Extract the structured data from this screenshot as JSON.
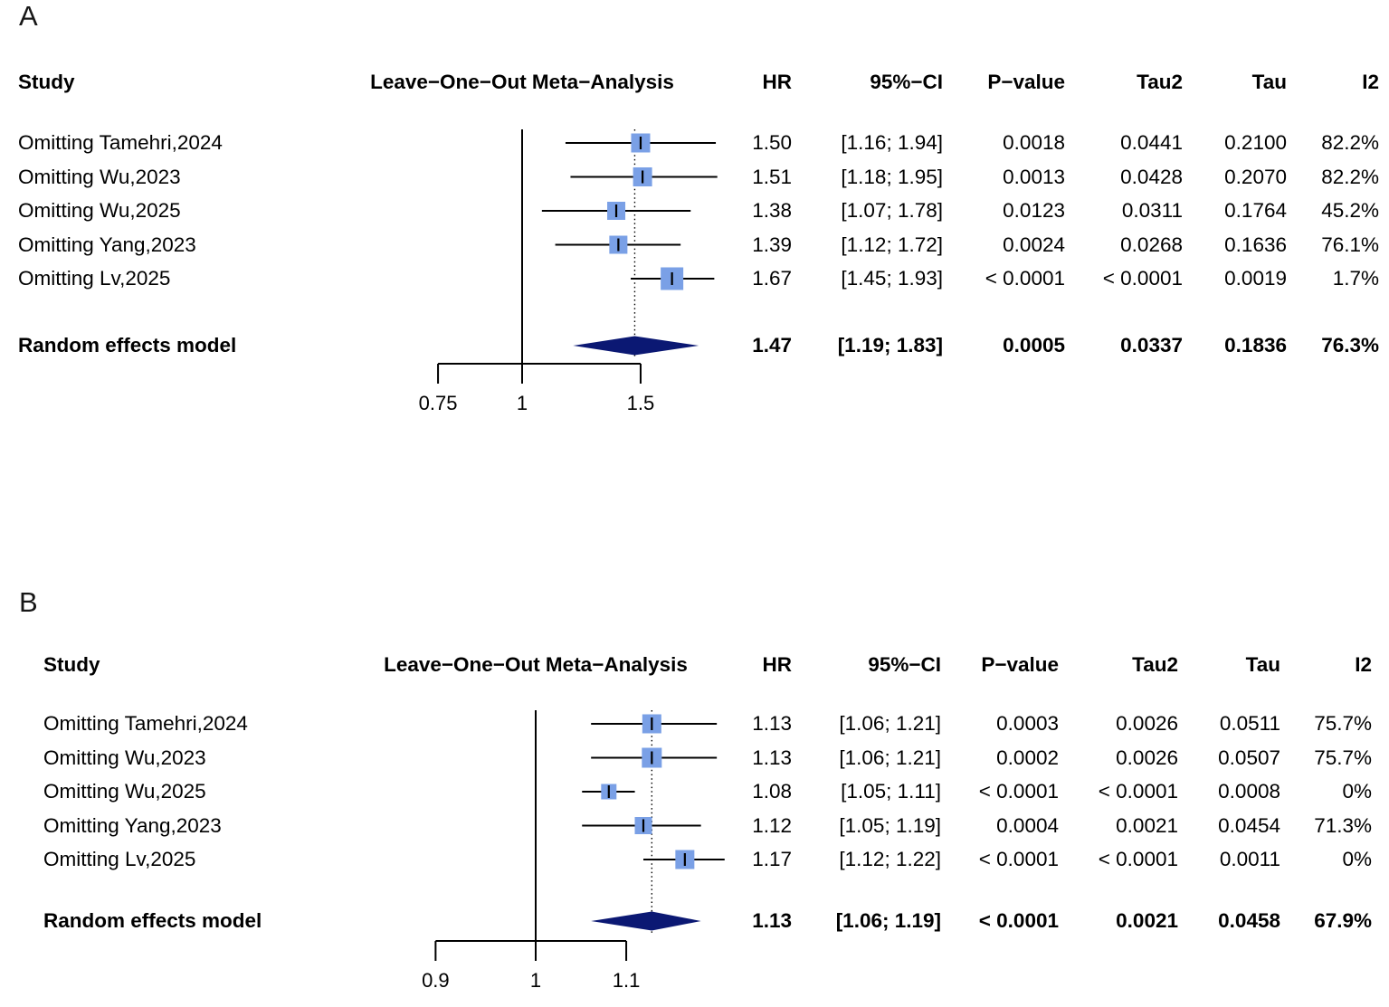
{
  "colors": {
    "background": "#ffffff",
    "text": "#000000",
    "line": "#000000",
    "square_fill": "#7aa0e6",
    "diamond_fill": "#0b1873"
  },
  "chart_data": [
    {
      "panel_label": "A",
      "type": "forest",
      "x_scale": "log",
      "columns": {
        "study": "Study",
        "plot": "Leave−One−Out Meta−Analysis",
        "hr": "HR",
        "ci": "95%−CI",
        "p": "P−value",
        "tau2": "Tau2",
        "tau": "Tau",
        "i2": "I2"
      },
      "axis_ticks": [
        0.75,
        1,
        1.5
      ],
      "axis_tick_labels": [
        "0.75",
        "1",
        "1.5"
      ],
      "null_value": 1,
      "studies": [
        {
          "label": "Omitting Tamehri,2024",
          "hr": 1.5,
          "ci": [
            1.16,
            1.94
          ],
          "hr_text": "1.50",
          "ci_text": "[1.16; 1.94]",
          "p_text": "0.0018",
          "tau2_text": "0.0441",
          "tau_text": "0.2100",
          "i2_text": "82.2%",
          "square_size": 21
        },
        {
          "label": "Omitting Wu,2023",
          "hr": 1.51,
          "ci": [
            1.18,
            1.95
          ],
          "hr_text": "1.51",
          "ci_text": "[1.18; 1.95]",
          "p_text": "0.0013",
          "tau2_text": "0.0428",
          "tau_text": "0.2070",
          "i2_text": "82.2%",
          "square_size": 21
        },
        {
          "label": "Omitting Wu,2025",
          "hr": 1.38,
          "ci": [
            1.07,
            1.78
          ],
          "hr_text": "1.38",
          "ci_text": "[1.07; 1.78]",
          "p_text": "0.0123",
          "tau2_text": "0.0311",
          "tau_text": "0.1764",
          "i2_text": "45.2%",
          "square_size": 20
        },
        {
          "label": "Omitting Yang,2023",
          "hr": 1.39,
          "ci": [
            1.12,
            1.72
          ],
          "hr_text": "1.39",
          "ci_text": "[1.12; 1.72]",
          "p_text": "0.0024",
          "tau2_text": "0.0268",
          "tau_text": "0.1636",
          "i2_text": "76.1%",
          "square_size": 20
        },
        {
          "label": "Omitting Lv,2025",
          "hr": 1.67,
          "ci": [
            1.45,
            1.93
          ],
          "hr_text": "1.67",
          "ci_text": "[1.45; 1.93]",
          "p_text": "< 0.0001",
          "tau2_text": "< 0.0001",
          "tau_text": "0.0019",
          "i2_text": "1.7%",
          "square_size": 25
        }
      ],
      "summary": {
        "label": "Random effects model",
        "hr": 1.47,
        "ci": [
          1.19,
          1.83
        ],
        "hr_text": "1.47",
        "ci_text": "[1.19; 1.83]",
        "p_text": "0.0005",
        "tau2_text": "0.0337",
        "tau_text": "0.1836",
        "i2_text": "76.3%"
      }
    },
    {
      "panel_label": "B",
      "type": "forest",
      "x_scale": "log",
      "columns": {
        "study": "Study",
        "plot": "Leave−One−Out Meta−Analysis",
        "hr": "HR",
        "ci": "95%−CI",
        "p": "P−value",
        "tau2": "Tau2",
        "tau": "Tau",
        "i2": "I2"
      },
      "axis_ticks": [
        0.9,
        1,
        1.1
      ],
      "axis_tick_labels": [
        "0.9",
        "1",
        "1.1"
      ],
      "null_value": 1,
      "studies": [
        {
          "label": "Omitting Tamehri,2024",
          "hr": 1.13,
          "ci": [
            1.06,
            1.21
          ],
          "hr_text": "1.13",
          "ci_text": "[1.06; 1.21]",
          "p_text": "0.0003",
          "tau2_text": "0.0026",
          "tau_text": "0.0511",
          "i2_text": "75.7%",
          "square_size": 21
        },
        {
          "label": "Omitting Wu,2023",
          "hr": 1.13,
          "ci": [
            1.06,
            1.21
          ],
          "hr_text": "1.13",
          "ci_text": "[1.06; 1.21]",
          "p_text": "0.0002",
          "tau2_text": "0.0026",
          "tau_text": "0.0507",
          "i2_text": "75.7%",
          "square_size": 22
        },
        {
          "label": "Omitting Wu,2025",
          "hr": 1.08,
          "ci": [
            1.05,
            1.11
          ],
          "hr_text": "1.08",
          "ci_text": "[1.05; 1.11]",
          "p_text": "< 0.0001",
          "tau2_text": "< 0.0001",
          "tau_text": "0.0008",
          "i2_text": "0%",
          "square_size": 17
        },
        {
          "label": "Omitting Yang,2023",
          "hr": 1.12,
          "ci": [
            1.05,
            1.19
          ],
          "hr_text": "1.12",
          "ci_text": "[1.05; 1.19]",
          "p_text": "0.0004",
          "tau2_text": "0.0021",
          "tau_text": "0.0454",
          "i2_text": "71.3%",
          "square_size": 19
        },
        {
          "label": "Omitting Lv,2025",
          "hr": 1.17,
          "ci": [
            1.12,
            1.22
          ],
          "hr_text": "1.17",
          "ci_text": "[1.12; 1.22]",
          "p_text": "< 0.0001",
          "tau2_text": "< 0.0001",
          "tau_text": "0.0011",
          "i2_text": "0%",
          "square_size": 21
        }
      ],
      "summary": {
        "label": "Random effects model",
        "hr": 1.13,
        "ci": [
          1.06,
          1.19
        ],
        "hr_text": "1.13",
        "ci_text": "[1.06; 1.19]",
        "p_text": "< 0.0001",
        "tau2_text": "0.0021",
        "tau_text": "0.0458",
        "i2_text": "67.9%"
      }
    }
  ]
}
